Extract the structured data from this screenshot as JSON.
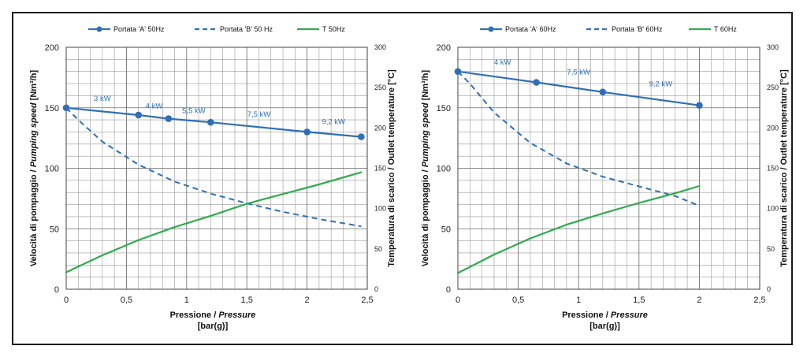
{
  "chart_data": [
    {
      "type": "line",
      "title": "",
      "legend": {
        "position": "top",
        "entries": [
          "Portata 'A' 50Hz",
          "Portata 'B' 50 Hz",
          "T 50Hz"
        ]
      },
      "xlabel_line1": "Pressione / ",
      "xlabel_line1_italic": "Pressure",
      "xlabel_line2": "[bar(g)]",
      "ylabel_left": "Velocità di pompaggio / ",
      "ylabel_left_italic": "Pumping speed",
      "ylabel_left_unit": " [Nm³/h]",
      "ylabel_right": "Temperatura di scarico / Outlet temperature [°C]",
      "xlim": [
        0,
        2.5
      ],
      "ylim_left": [
        0,
        200
      ],
      "ylim_right": [
        0,
        300
      ],
      "grid": true,
      "x_ticks": [
        0,
        0.5,
        1,
        1.5,
        2,
        2.5
      ],
      "x_tick_labels": [
        "0",
        "0,5",
        "1",
        "1,5",
        "2",
        "2,5"
      ],
      "y_left_ticks": [
        0,
        50,
        100,
        150,
        200
      ],
      "y_left_tick_labels": [
        "0",
        "50",
        "100",
        "150",
        "200"
      ],
      "y_right_ticks": [
        0,
        50,
        100,
        150,
        200,
        250,
        300
      ],
      "y_right_tick_labels": [
        "0",
        "50",
        "100",
        "150",
        "200",
        "250",
        "300"
      ],
      "series": [
        {
          "name": "Portata 'A' 50Hz",
          "axis": "left",
          "style": "solid-marker",
          "color": "#2f6fb6",
          "x": [
            0,
            0.6,
            0.85,
            1.2,
            2.0,
            2.45
          ],
          "y": [
            150,
            144,
            141,
            138,
            130,
            126
          ]
        },
        {
          "name": "Portata 'B' 50 Hz",
          "axis": "left",
          "style": "dashed",
          "color": "#2f6fb6",
          "x": [
            0,
            0.1,
            0.3,
            0.6,
            0.9,
            1.2,
            1.5,
            1.8,
            2.1,
            2.45
          ],
          "y": [
            150,
            140,
            122,
            103,
            89,
            79,
            71,
            64,
            58,
            52
          ]
        },
        {
          "name": "T 50Hz",
          "axis": "right",
          "style": "solid",
          "color": "#2faa4c",
          "x": [
            0,
            0.3,
            0.6,
            0.9,
            1.2,
            1.5,
            1.8,
            2.1,
            2.45
          ],
          "y": [
            21,
            42,
            61,
            77,
            91,
            106,
            118,
            130,
            145
          ]
        }
      ],
      "annotations": [
        {
          "text": "3 kW",
          "x": 0.3,
          "y": 153
        },
        {
          "text": "4 kW",
          "x": 0.73,
          "y": 147
        },
        {
          "text": "5,5 kW",
          "x": 1.06,
          "y": 143
        },
        {
          "text": "7,5 kW",
          "x": 1.6,
          "y": 140
        },
        {
          "text": "9,2 kW",
          "x": 2.22,
          "y": 134
        }
      ]
    },
    {
      "type": "line",
      "title": "",
      "legend": {
        "position": "top",
        "entries": [
          "Portata 'A' 60Hz",
          "Portata 'B' 60Hz",
          "T 60Hz"
        ]
      },
      "xlabel_line1": "Pressione / ",
      "xlabel_line1_italic": "Pressure",
      "xlabel_line2": "[bar(g)]",
      "ylabel_left": "Velocità di pompaggio / ",
      "ylabel_left_italic": "Pumping speed",
      "ylabel_left_unit": " [Nm³/h]",
      "ylabel_right": "Temperatura di scarico / Outlet temperature [°C]",
      "xlim": [
        0,
        2.5
      ],
      "ylim_left": [
        0,
        200
      ],
      "ylim_right": [
        0,
        300
      ],
      "grid": true,
      "x_ticks": [
        0,
        0.5,
        1,
        1.5,
        2,
        2.5
      ],
      "x_tick_labels": [
        "0",
        "0,5",
        "1",
        "1,5",
        "2",
        "2,5"
      ],
      "y_left_ticks": [
        0,
        50,
        100,
        150,
        200
      ],
      "y_left_tick_labels": [
        "0",
        "50",
        "100",
        "150",
        "200"
      ],
      "y_right_ticks": [
        0,
        50,
        100,
        150,
        200,
        250,
        300
      ],
      "y_right_tick_labels": [
        "0",
        "50",
        "100",
        "150",
        "200",
        "250",
        "300"
      ],
      "series": [
        {
          "name": "Portata 'A' 60Hz",
          "axis": "left",
          "style": "solid-marker",
          "color": "#2f6fb6",
          "x": [
            0,
            0.65,
            1.2,
            2.0
          ],
          "y": [
            180,
            171,
            163,
            152
          ]
        },
        {
          "name": "Portata 'B' 60Hz",
          "axis": "left",
          "style": "dashed",
          "color": "#2f6fb6",
          "x": [
            0,
            0.1,
            0.3,
            0.6,
            0.9,
            1.2,
            1.5,
            1.8,
            2.0
          ],
          "y": [
            180,
            170,
            146,
            121,
            104,
            93,
            85,
            77,
            69
          ]
        },
        {
          "name": "T 60Hz",
          "axis": "right",
          "style": "solid",
          "color": "#2faa4c",
          "x": [
            0,
            0.3,
            0.6,
            0.9,
            1.2,
            1.5,
            1.8,
            2.0
          ],
          "y": [
            20,
            43,
            63,
            80,
            94,
            107,
            119,
            128
          ]
        }
      ],
      "annotations": [
        {
          "text": "4 kW",
          "x": 0.37,
          "y": 183
        },
        {
          "text": "7,5 kW",
          "x": 1.0,
          "y": 175
        },
        {
          "text": "9,2 kW",
          "x": 1.68,
          "y": 165
        }
      ]
    }
  ]
}
